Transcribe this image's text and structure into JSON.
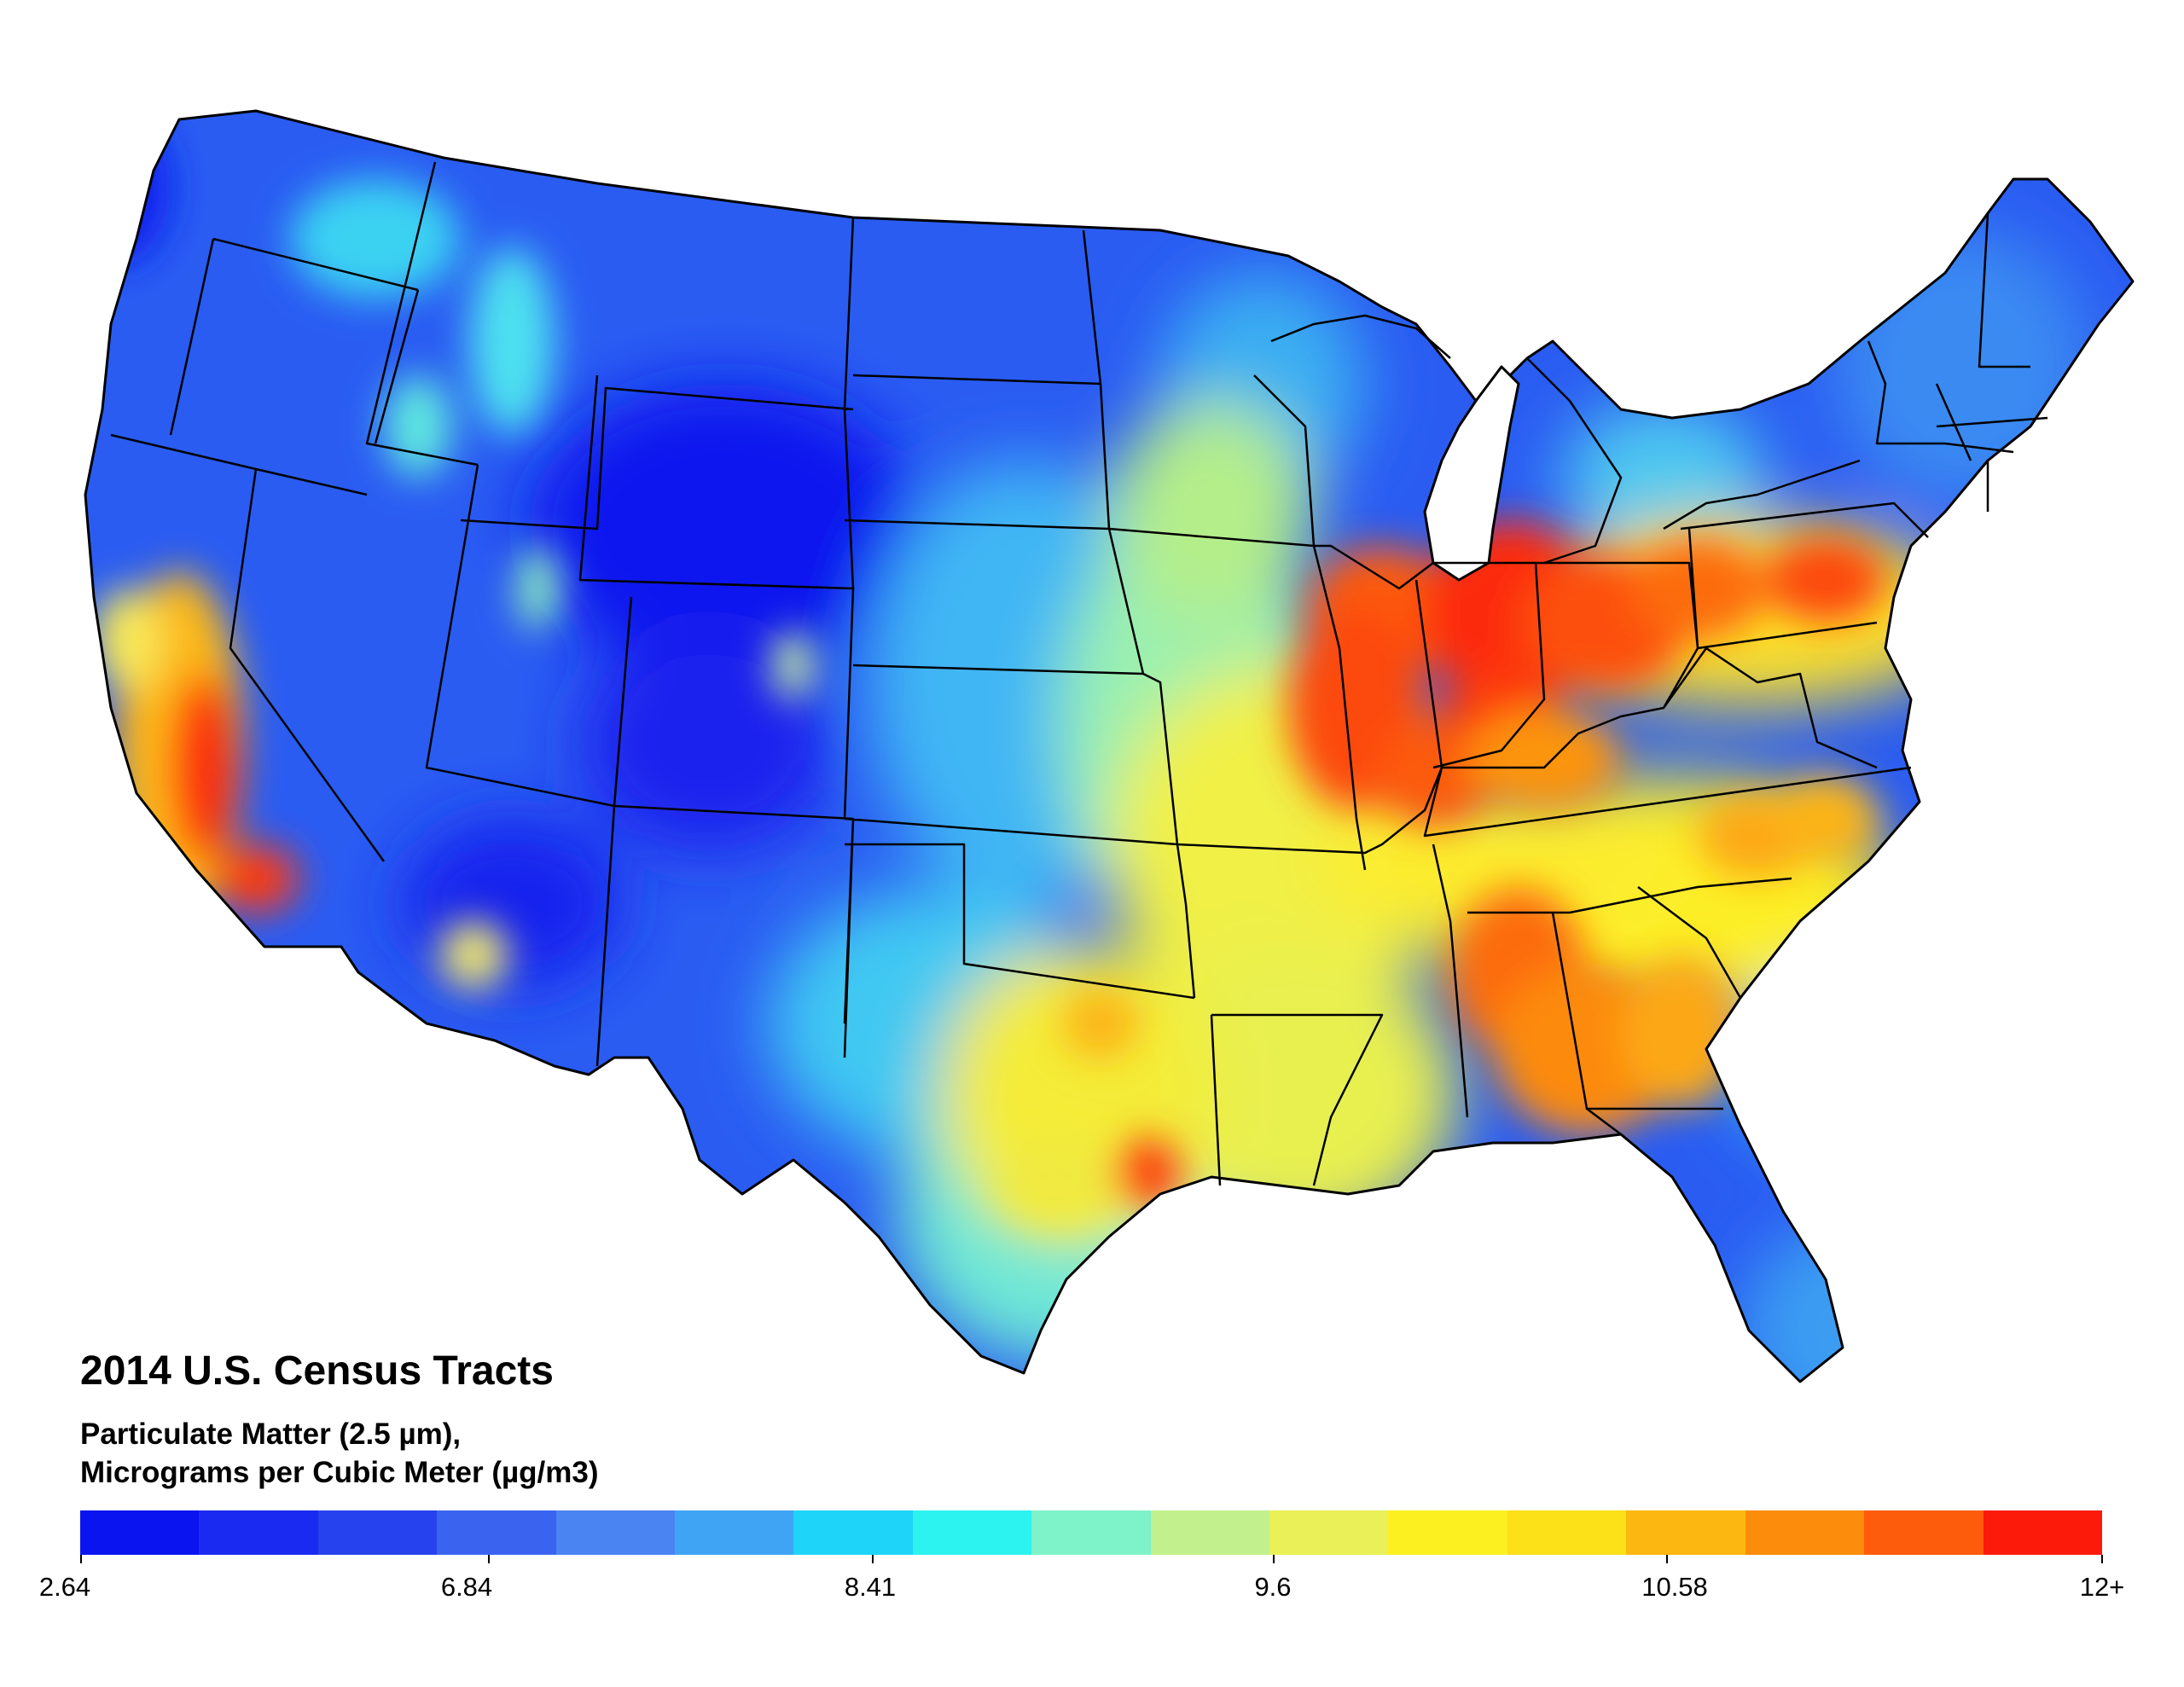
{
  "title": "2014 U.S. Census Tracts",
  "subtitle_line1": "Particulate Matter (2.5 µm),",
  "subtitle_line2": "Micrograms per Cubic Meter (µg/m3)",
  "legend": {
    "ticks": [
      "2.64",
      "6.84",
      "8.41",
      "9.6",
      "10.58",
      "12+"
    ],
    "colors": [
      "#0a14f0",
      "#1a2af0",
      "#2542ee",
      "#3a64f0",
      "#4a84f2",
      "#3fa4f4",
      "#1ed4f8",
      "#2cf2f0",
      "#7ef2c8",
      "#c2f08c",
      "#eaf058",
      "#fcf020",
      "#fce018",
      "#fcb810",
      "#fc8c0c",
      "#fc5c0c",
      "#fc1a0a"
    ]
  },
  "map": {
    "background": "#2a5cf2",
    "boundary_color": "#000000"
  }
}
